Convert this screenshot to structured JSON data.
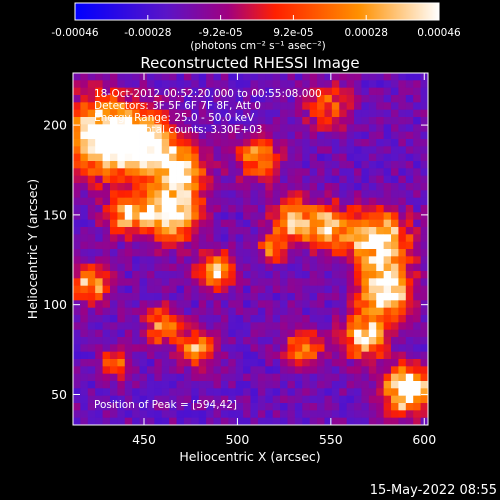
{
  "chart_data": {
    "type": "heatmap",
    "title": "Reconstructed RHESSI Image",
    "xlabel": "Heliocentric X (arcsec)",
    "ylabel": "Heliocentric Y (arcsec)",
    "xlim": [
      412,
      602
    ],
    "ylim": [
      33,
      229
    ],
    "x_ticks": [
      450,
      500,
      550,
      600
    ],
    "y_ticks": [
      50,
      100,
      150,
      200
    ],
    "colorbar": {
      "min": -0.00046,
      "max": 0.00046,
      "tick_labels": [
        "-0.00046",
        "-0.00028",
        "-9.2e-05",
        "9.2e-05",
        "0.00028",
        "0.00046"
      ],
      "unit_label": "(photons cm⁻² s⁻¹ asec⁻²)",
      "colors": [
        "#0000ff",
        "#5a14c8",
        "#a00080",
        "#ff2000",
        "#ff9000",
        "#ffffff"
      ]
    },
    "annotations": [
      "18-Oct-2012 00:52:20.000 to 00:55:08.000",
      "Detectors: 3F 5F 6F 7F 8F, Att 0",
      "Energy Range: 25.0 - 50.0 keV",
      "Clean     Total counts: 3.30E+03"
    ],
    "peak_label": "Position of Peak = [594,42]",
    "peak": {
      "x": 594,
      "y": 42
    },
    "grid": false,
    "legend": "none"
  },
  "footer_timestamp": "15-May-2022 08:55"
}
